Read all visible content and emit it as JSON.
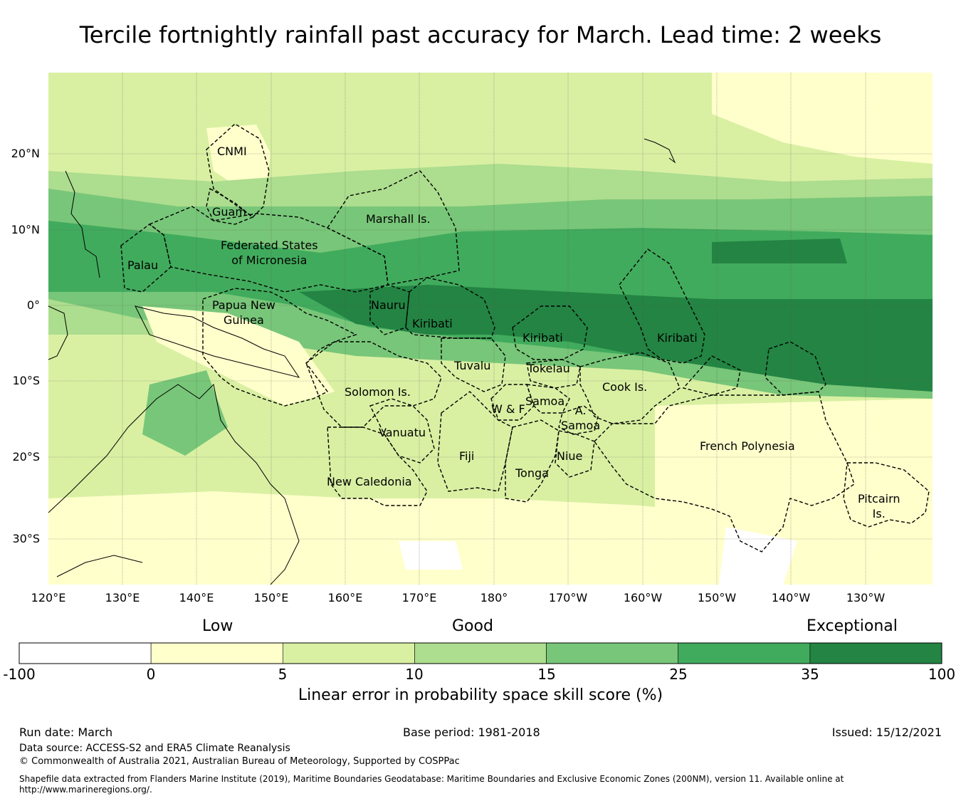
{
  "title": "Tercile fortnightly rainfall past accuracy for March. Lead time: 2 weeks",
  "map": {
    "lat_ticks": [
      "20°N",
      "10°N",
      "0°",
      "10°S",
      "20°S",
      "30°S"
    ],
    "lon_ticks": [
      "120°E",
      "130°E",
      "140°E",
      "150°E",
      "160°E",
      "170°E",
      "180°",
      "170°W",
      "160°W",
      "150°W",
      "140°W",
      "130°W"
    ],
    "regions": [
      {
        "id": "cnmi",
        "lines": [
          "CNMI"
        ]
      },
      {
        "id": "guam",
        "lines": [
          "Guam"
        ]
      },
      {
        "id": "marshall",
        "lines": [
          "Marshall Is."
        ]
      },
      {
        "id": "fsm",
        "lines": [
          "Federated States",
          "of Micronesia"
        ]
      },
      {
        "id": "palau",
        "lines": [
          "Palau"
        ]
      },
      {
        "id": "png",
        "lines": [
          "Papua New",
          "Guinea"
        ]
      },
      {
        "id": "nauru",
        "lines": [
          "Nauru"
        ]
      },
      {
        "id": "kiribati-w",
        "lines": [
          "Kiribati"
        ]
      },
      {
        "id": "kiribati-c",
        "lines": [
          "Kiribati"
        ]
      },
      {
        "id": "kiribati-e",
        "lines": [
          "Kiribati"
        ]
      },
      {
        "id": "tuvalu",
        "lines": [
          "Tuvalu"
        ]
      },
      {
        "id": "tokelau",
        "lines": [
          "Tokelau"
        ]
      },
      {
        "id": "cook",
        "lines": [
          "Cook Is."
        ]
      },
      {
        "id": "solomon",
        "lines": [
          "Solomon Is."
        ]
      },
      {
        "id": "samoa",
        "lines": [
          "Samoa"
        ]
      },
      {
        "id": "wf",
        "lines": [
          "W & F"
        ]
      },
      {
        "id": "asamoa",
        "lines": [
          "A.",
          "Samoa"
        ]
      },
      {
        "id": "vanuatu",
        "lines": [
          "Vanuatu"
        ]
      },
      {
        "id": "fiji",
        "lines": [
          "Fiji"
        ]
      },
      {
        "id": "niue",
        "lines": [
          "Niue"
        ]
      },
      {
        "id": "tonga",
        "lines": [
          "Tonga"
        ]
      },
      {
        "id": "frenchpoly",
        "lines": [
          "French Polynesia"
        ]
      },
      {
        "id": "newcal",
        "lines": [
          "New Caledonia"
        ]
      },
      {
        "id": "pitcairn",
        "lines": [
          "Pitcairn",
          "Is."
        ]
      }
    ]
  },
  "colorbar": {
    "categories": [
      "Low",
      "Good",
      "Exceptional"
    ],
    "ticks": [
      "-100",
      "0",
      "5",
      "10",
      "15",
      "25",
      "35",
      "100"
    ],
    "colors": [
      "#ffffff",
      "#ffffcc",
      "#d9f0a3",
      "#addd8e",
      "#78c679",
      "#41ab5d",
      "#238443"
    ],
    "label": "Linear error in probability space skill score (%)"
  },
  "footer": {
    "run_date": "Run date: March",
    "base_period": "Base period: 1981-2018",
    "issued": "Issued: 15/12/2021",
    "data_source": "Data source: ACCESS-S2 and ERA5 Climate Reanalysis",
    "copyright": "© Commonwealth of Australia 2021, Australian Bureau of Meteorology, Supported by COSPPac",
    "shapefile_1": "Shapefile data extracted from Flanders Marine Institute (2019), Maritime Boundaries Geodatabase: Maritime Boundaries and Exclusive Economic Zones (200NM), version 11. Available online at",
    "shapefile_2": "http://www.marineregions.org/."
  }
}
